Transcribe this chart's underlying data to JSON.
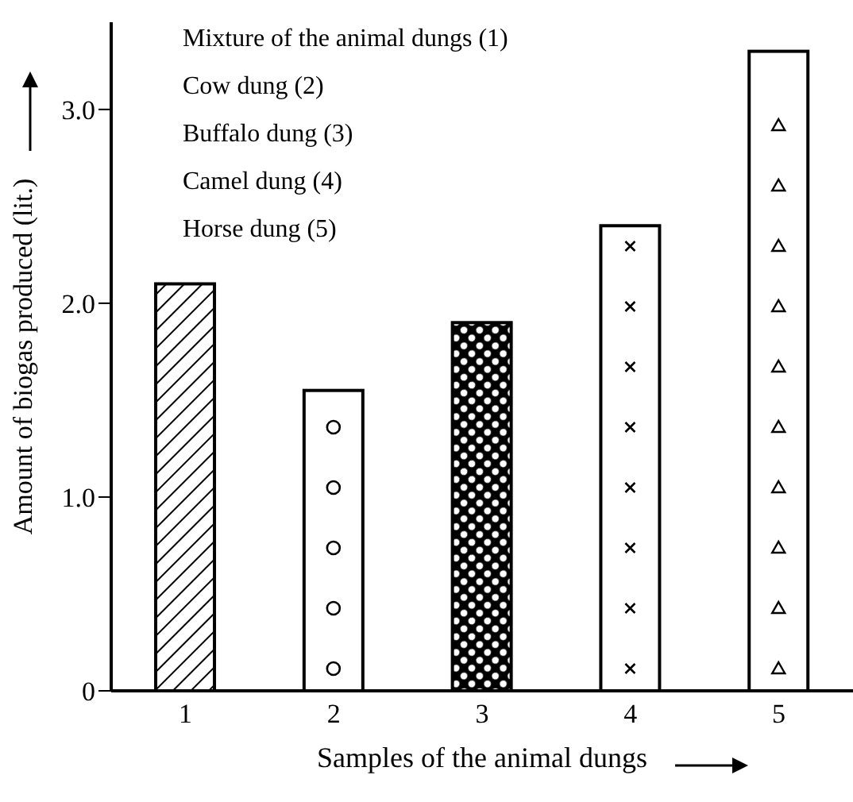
{
  "chart_data": {
    "type": "bar",
    "xlabel": "Samples of the animal dungs",
    "ylabel": "Amount of biogas produced (lit.)",
    "categories": [
      "1",
      "2",
      "3",
      "4",
      "5"
    ],
    "values": [
      2.1,
      1.55,
      1.9,
      2.4,
      3.3
    ],
    "colors": [
      "#000000",
      "#000000",
      "#000000",
      "#000000",
      "#000000"
    ],
    "ylim": [
      0,
      3.45
    ],
    "yticks": [
      {
        "value": 0,
        "label": "0"
      },
      {
        "value": 1,
        "label": "1.0"
      },
      {
        "value": 2,
        "label": "2.0"
      },
      {
        "value": 3,
        "label": "3.0"
      }
    ],
    "annotations": [
      "Mixture of the animal dungs (1)",
      "Cow dung (2)",
      "Buffalo dung (3)",
      "Camel dung (4)",
      "Horse dung (5)"
    ],
    "grid": false,
    "legend": false
  }
}
